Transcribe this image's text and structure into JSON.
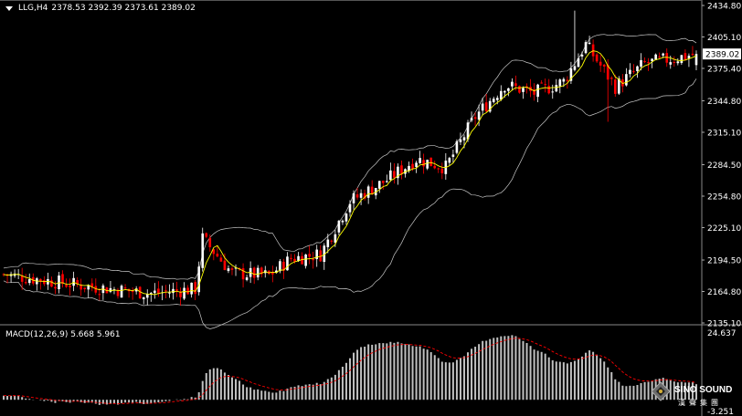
{
  "header": {
    "symbol": "LLG,H4",
    "ohlc": "2378.53 2392.39 2373.61 2389.02"
  },
  "price_axis": {
    "labels": [
      "2434.80",
      "2405.10",
      "2375.40",
      "2344.80",
      "2315.10",
      "2284.50",
      "2254.80",
      "2225.10",
      "2194.50",
      "2164.80",
      "2135.10"
    ],
    "current_price": "2389.02"
  },
  "macd": {
    "label": "MACD(12,26,9) 5.668 5.961",
    "axis_top": "24.637",
    "axis_bottom": "-3.251"
  },
  "logo": {
    "brand": "SINO SOUND",
    "chinese": "漢聲集團"
  },
  "colors": {
    "background": "#000000",
    "bull": "#ffffff",
    "bear": "#ff0000",
    "ma": "#ffff00",
    "bands": "#c8c8c8",
    "macd_hist": "#c0c0c0",
    "signal": "#ff0000"
  },
  "chart_data": [
    {
      "type": "candlestick",
      "title": "LLG,H4",
      "ylim": [
        2135.1,
        2434.8
      ],
      "indicators": [
        "Bollinger Bands",
        "Moving Average"
      ],
      "approx_close_path": [
        {
          "bar": 0,
          "close": 2181
        },
        {
          "bar": 20,
          "close": 2171
        },
        {
          "bar": 40,
          "close": 2163
        },
        {
          "bar": 52,
          "close": 2167
        },
        {
          "bar": 54,
          "close": 2215
        },
        {
          "bar": 62,
          "close": 2182
        },
        {
          "bar": 72,
          "close": 2180
        },
        {
          "bar": 78,
          "close": 2196
        },
        {
          "bar": 86,
          "close": 2200
        },
        {
          "bar": 94,
          "close": 2250
        },
        {
          "bar": 104,
          "close": 2270
        },
        {
          "bar": 112,
          "close": 2290
        },
        {
          "bar": 120,
          "close": 2282
        },
        {
          "bar": 128,
          "close": 2330
        },
        {
          "bar": 136,
          "close": 2360
        },
        {
          "bar": 144,
          "close": 2352
        },
        {
          "bar": 152,
          "close": 2363
        },
        {
          "bar": 158,
          "close": 2398
        },
        {
          "bar": 166,
          "close": 2358
        },
        {
          "bar": 174,
          "close": 2380
        },
        {
          "bar": 182,
          "close": 2385
        },
        {
          "bar": 188,
          "close": 2389
        }
      ]
    },
    {
      "type": "bar",
      "title": "MACD(12,26,9)",
      "ylim": [
        -3.251,
        24.637
      ],
      "macd_last": 5.668,
      "signal_last": 5.961
    }
  ]
}
